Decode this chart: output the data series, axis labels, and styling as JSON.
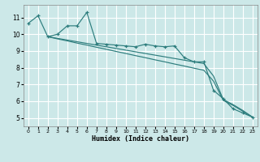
{
  "xlabel": "Humidex (Indice chaleur)",
  "bg_color": "#cce8e8",
  "grid_color": "#ffffff",
  "line_color": "#2d7d7d",
  "xlim": [
    -0.5,
    23.5
  ],
  "ylim": [
    4.5,
    11.75
  ],
  "xticks": [
    0,
    1,
    2,
    3,
    4,
    5,
    6,
    7,
    8,
    9,
    10,
    11,
    12,
    13,
    14,
    15,
    16,
    17,
    18,
    19,
    20,
    21,
    22,
    23
  ],
  "yticks": [
    5,
    6,
    7,
    8,
    9,
    10,
    11
  ],
  "jagged_x": [
    0,
    1,
    2,
    3,
    4,
    5,
    6,
    7,
    8,
    9,
    10,
    11,
    12,
    13,
    14,
    15,
    16,
    17,
    18,
    19,
    20,
    21,
    22,
    23
  ],
  "jagged_y": [
    10.65,
    11.1,
    9.85,
    10.0,
    10.5,
    10.5,
    11.3,
    9.45,
    9.4,
    9.35,
    9.3,
    9.25,
    9.4,
    9.3,
    9.25,
    9.3,
    8.6,
    8.35,
    8.35,
    6.65,
    6.15,
    5.55,
    5.3,
    5.05
  ],
  "reg1_x": [
    2,
    3,
    4,
    5,
    6,
    7,
    8,
    9,
    10,
    11,
    12,
    13,
    14,
    15,
    16,
    17,
    18,
    19,
    20,
    21,
    22,
    23
  ],
  "reg1_y": [
    9.85,
    9.75,
    9.65,
    9.55,
    9.45,
    9.35,
    9.25,
    9.15,
    9.05,
    8.95,
    8.85,
    8.75,
    8.65,
    8.55,
    8.45,
    8.35,
    8.25,
    7.5,
    6.1,
    5.8,
    5.45,
    5.05
  ],
  "reg2_x": [
    2,
    3,
    4,
    5,
    6,
    7,
    8,
    9,
    10,
    11,
    12,
    13,
    14,
    15,
    16,
    17,
    18,
    19,
    20,
    21,
    22,
    23
  ],
  "reg2_y": [
    9.85,
    9.72,
    9.6,
    9.47,
    9.35,
    9.22,
    9.1,
    8.97,
    8.85,
    8.72,
    8.6,
    8.47,
    8.35,
    8.22,
    8.1,
    7.97,
    7.85,
    7.2,
    6.05,
    5.75,
    5.4,
    5.05
  ]
}
